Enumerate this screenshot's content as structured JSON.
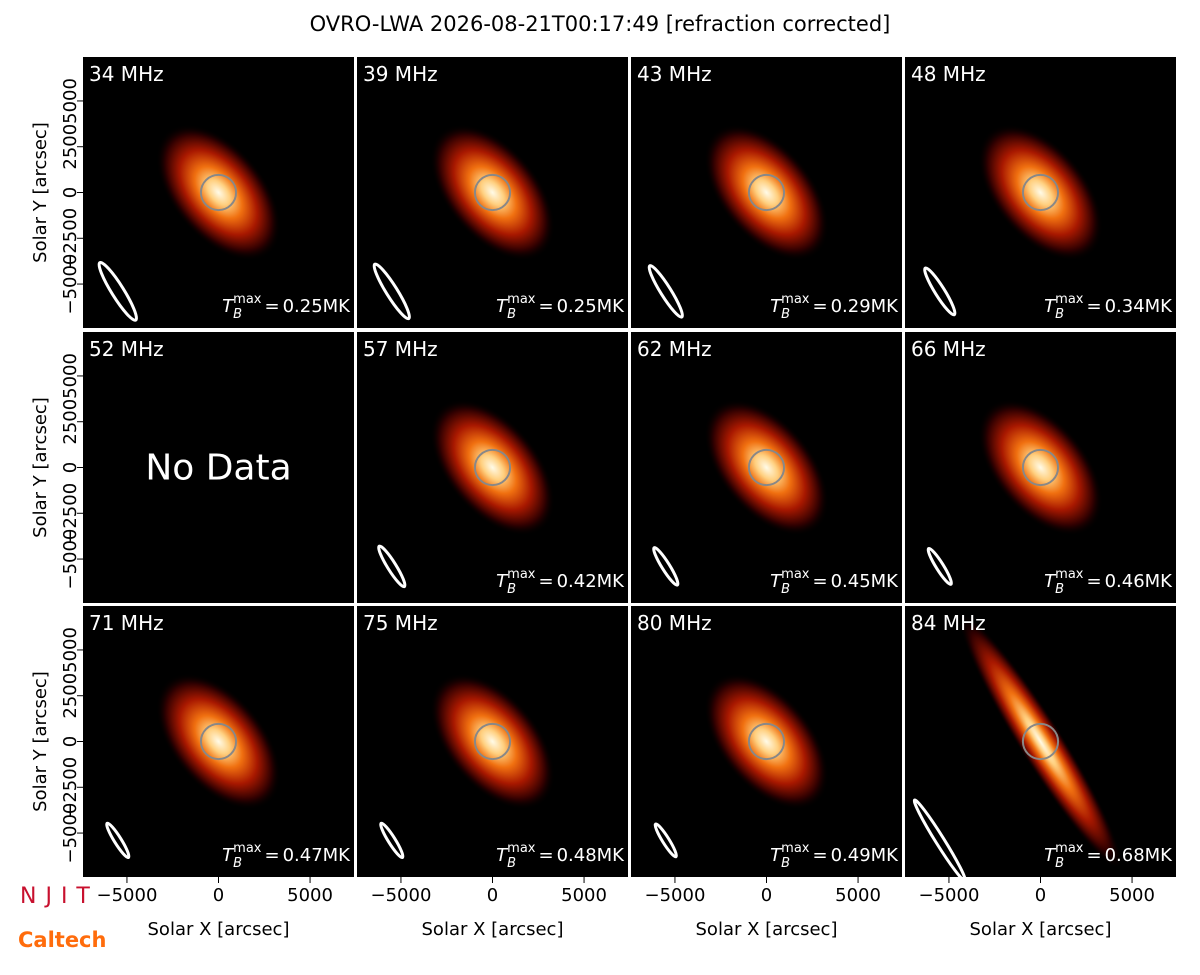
{
  "chart_data": {
    "type": "image_grid",
    "title": "OVRO-LWA 2026-08-21T00:17:49 [refraction corrected]",
    "xlabel": "Solar X [arcsec]",
    "ylabel": "Solar Y [arcsec]",
    "xlim": [
      -7400,
      7400
    ],
    "ylim": [
      -7400,
      7400
    ],
    "xticks": [
      {
        "value": -5000,
        "label": "−5000"
      },
      0,
      5000
    ],
    "yticks": [
      {
        "value": -5000,
        "label": "−5000"
      },
      {
        "value": -2500,
        "label": "−2500"
      },
      0,
      2500,
      5000
    ],
    "sun_radius": 960,
    "tb_symbol": "T",
    "tb_sub": "B",
    "tb_sup": "max",
    "tb_eq": "=",
    "panels": [
      {
        "frequency": "34 MHz",
        "tb_max": 0.25,
        "tb_max_label": "0.25MK",
        "beam": [
          1850,
          330
        ]
      },
      {
        "frequency": "39 MHz",
        "tb_max": 0.25,
        "tb_max_label": "0.25MK",
        "beam": [
          1750,
          300
        ]
      },
      {
        "frequency": "43 MHz",
        "tb_max": 0.29,
        "tb_max_label": "0.29MK",
        "beam": [
          1650,
          280
        ]
      },
      {
        "frequency": "48 MHz",
        "tb_max": 0.34,
        "tb_max_label": "0.34MK",
        "beam": [
          1500,
          260
        ]
      },
      {
        "frequency": "52 MHz",
        "note": "No Data"
      },
      {
        "frequency": "57 MHz",
        "tb_max": 0.42,
        "tb_max_label": "0.42MK",
        "beam": [
          1300,
          230
        ]
      },
      {
        "frequency": "62 MHz",
        "tb_max": 0.45,
        "tb_max_label": "0.45MK",
        "beam": [
          1200,
          210
        ]
      },
      {
        "frequency": "66 MHz",
        "tb_max": 0.46,
        "tb_max_label": "0.46MK",
        "beam": [
          1150,
          200
        ]
      },
      {
        "frequency": "71 MHz",
        "tb_max": 0.47,
        "tb_max_label": "0.47MK",
        "beam": [
          1100,
          190
        ]
      },
      {
        "frequency": "75 MHz",
        "tb_max": 0.48,
        "tb_max_label": "0.48MK",
        "beam": [
          1100,
          190
        ]
      },
      {
        "frequency": "80 MHz",
        "tb_max": 0.49,
        "tb_max_label": "0.49MK",
        "beam": [
          1050,
          180
        ]
      },
      {
        "frequency": "84 MHz",
        "tb_max": 0.68,
        "tb_max_label": "0.68MK",
        "beam": [
          2600,
          230
        ]
      }
    ],
    "logos": [
      "NJIT",
      "Caltech"
    ]
  }
}
